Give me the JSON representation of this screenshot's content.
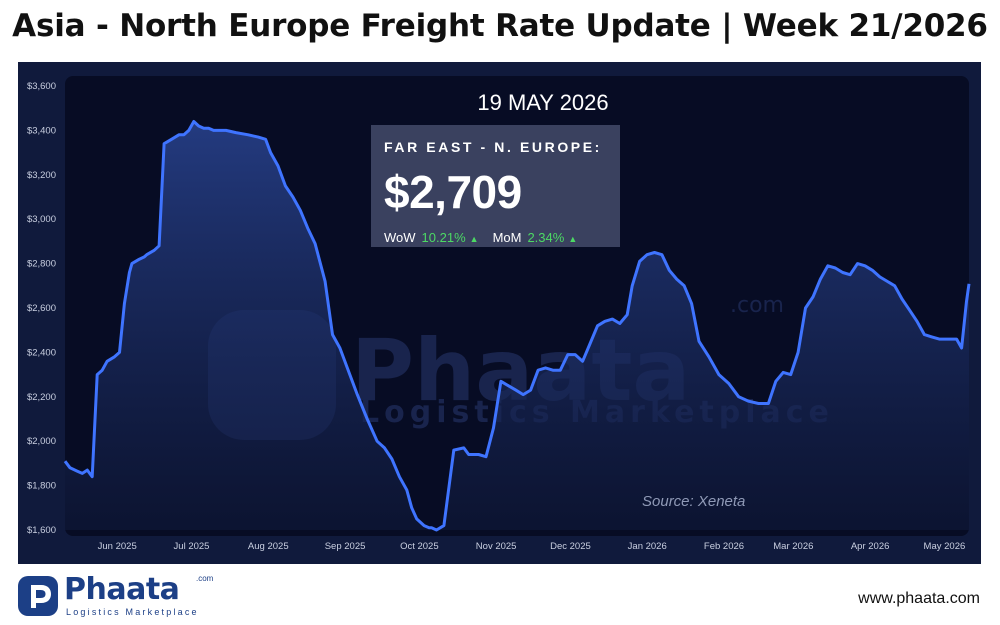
{
  "header": {
    "title": "Asia - North Europe Freight Rate Update | Week 21/2026"
  },
  "card": {
    "date": "19 MAY 2026",
    "route": "FAR EAST - N. EUROPE:",
    "price": "$2,709",
    "wow_label": "WoW",
    "wow_value": "10.21%",
    "mom_label": "MoM",
    "mom_value": "2.34%"
  },
  "source": "Source: Xeneta",
  "watermark": {
    "brand": "Phaata",
    "tagline": "Logistics Marketplace",
    "domain": ".com"
  },
  "footer": {
    "logo_text": "Phaata",
    "logo_tagline": "Logistics Marketplace",
    "logo_domain": ".com",
    "url": "www.phaata.com"
  },
  "colors": {
    "panel_bg": "#101a3c",
    "line": "#3f74ff",
    "positive": "#4cd964",
    "brand": "#1c3f86"
  },
  "chart_data": {
    "type": "area",
    "title": "",
    "xlabel": "",
    "ylabel": "",
    "ylim": [
      1600,
      3600
    ],
    "y_ticks": [
      1600,
      1800,
      2000,
      2200,
      2400,
      2600,
      2800,
      3000,
      3200,
      3400,
      3600
    ],
    "y_tick_labels": [
      "$1,600",
      "$1,800",
      "$2,000",
      "$2,200",
      "$2,400",
      "$2,600",
      "$2,800",
      "$3,000",
      "$3,200",
      "$3,400",
      "$3,600"
    ],
    "x_tick_labels": [
      "Jun 2025",
      "Jul 2025",
      "Aug 2025",
      "Sep 2025",
      "Oct 2025",
      "Nov 2025",
      "Dec 2025",
      "Jan 2026",
      "Feb 2026",
      "Mar 2026",
      "Apr 2026",
      "May 2026"
    ],
    "x_tick_dates": [
      "2025-06-01",
      "2025-07-01",
      "2025-08-01",
      "2025-09-01",
      "2025-10-01",
      "2025-11-01",
      "2025-12-01",
      "2026-01-01",
      "2026-02-01",
      "2026-03-01",
      "2026-04-01",
      "2026-05-01"
    ],
    "grid": false,
    "legend": "none",
    "series": [
      {
        "name": "",
        "x": [
          "2025-05-19",
          "2025-05-21",
          "2025-05-24",
          "2025-05-26",
          "2025-05-28",
          "2025-05-30",
          "2025-06-01",
          "2025-06-03",
          "2025-06-05",
          "2025-06-08",
          "2025-06-10",
          "2025-06-12",
          "2025-06-14",
          "2025-06-15",
          "2025-06-18",
          "2025-06-20",
          "2025-06-21",
          "2025-06-24",
          "2025-06-26",
          "2025-06-28",
          "2025-07-01",
          "2025-07-04",
          "2025-07-06",
          "2025-07-08",
          "2025-07-10",
          "2025-07-12",
          "2025-07-14",
          "2025-07-16",
          "2025-07-18",
          "2025-07-20",
          "2025-07-23",
          "2025-07-27",
          "2025-08-01",
          "2025-08-05",
          "2025-08-08",
          "2025-08-10",
          "2025-08-13",
          "2025-08-16",
          "2025-08-19",
          "2025-08-22",
          "2025-08-25",
          "2025-08-28",
          "2025-09-01",
          "2025-09-04",
          "2025-09-07",
          "2025-09-10",
          "2025-09-14",
          "2025-09-18",
          "2025-09-22",
          "2025-09-25",
          "2025-09-28",
          "2025-10-01",
          "2025-10-04",
          "2025-10-06",
          "2025-10-08",
          "2025-10-11",
          "2025-10-13",
          "2025-10-14",
          "2025-10-16",
          "2025-10-19",
          "2025-10-23",
          "2025-10-27",
          "2025-10-29",
          "2025-11-02",
          "2025-11-05",
          "2025-11-08",
          "2025-11-11",
          "2025-11-14",
          "2025-11-17",
          "2025-11-20",
          "2025-11-23",
          "2025-11-26",
          "2025-11-29",
          "2025-12-02",
          "2025-12-05",
          "2025-12-08",
          "2025-12-11",
          "2025-12-14",
          "2025-12-17",
          "2025-12-20",
          "2025-12-23",
          "2025-12-26",
          "2025-12-29",
          "2026-01-01",
          "2026-01-03",
          "2026-01-06",
          "2026-01-09",
          "2026-01-12",
          "2026-01-15",
          "2026-01-18",
          "2026-01-21",
          "2026-01-24",
          "2026-01-27",
          "2026-01-30",
          "2026-02-03",
          "2026-02-07",
          "2026-02-11",
          "2026-02-15",
          "2026-02-19",
          "2026-02-23",
          "2026-02-27",
          "2026-03-02",
          "2026-03-05",
          "2026-03-08",
          "2026-03-11",
          "2026-03-14",
          "2026-03-17",
          "2026-03-20",
          "2026-03-23",
          "2026-03-26",
          "2026-03-29",
          "2026-04-01",
          "2026-04-04",
          "2026-04-07",
          "2026-04-10",
          "2026-04-13",
          "2026-04-16",
          "2026-04-19",
          "2026-04-22",
          "2026-04-25",
          "2026-04-28",
          "2026-05-01",
          "2026-05-04",
          "2026-05-07",
          "2026-05-10",
          "2026-05-12",
          "2026-05-14",
          "2026-05-16",
          "2026-05-18",
          "2026-05-19"
        ],
        "values": [
          1910,
          1880,
          1865,
          1855,
          1870,
          1840,
          2300,
          2320,
          2360,
          2380,
          2400,
          2620,
          2760,
          2800,
          2820,
          2830,
          2840,
          2860,
          2880,
          3340,
          3360,
          3380,
          3380,
          3400,
          3440,
          3420,
          3410,
          3410,
          3400,
          3400,
          3400,
          3390,
          3380,
          3370,
          3360,
          3300,
          3240,
          3150,
          3100,
          3040,
          2960,
          2890,
          2720,
          2480,
          2420,
          2330,
          2210,
          2100,
          2000,
          1970,
          1920,
          1840,
          1780,
          1700,
          1650,
          1620,
          1610,
          1610,
          1600,
          1620,
          1960,
          1970,
          1940,
          1940,
          1930,
          2060,
          2270,
          2250,
          2230,
          2210,
          2230,
          2320,
          2330,
          2320,
          2320,
          2390,
          2390,
          2360,
          2440,
          2520,
          2540,
          2550,
          2530,
          2570,
          2700,
          2810,
          2840,
          2850,
          2840,
          2770,
          2730,
          2700,
          2620,
          2450,
          2380,
          2300,
          2260,
          2200,
          2180,
          2170,
          2170,
          2270,
          2310,
          2300,
          2400,
          2600,
          2650,
          2730,
          2790,
          2780,
          2760,
          2750,
          2800,
          2790,
          2770,
          2740,
          2720,
          2700,
          2640,
          2590,
          2540,
          2480,
          2470,
          2460,
          2460,
          2460,
          2460,
          2420,
          2630,
          2709
        ]
      }
    ]
  }
}
